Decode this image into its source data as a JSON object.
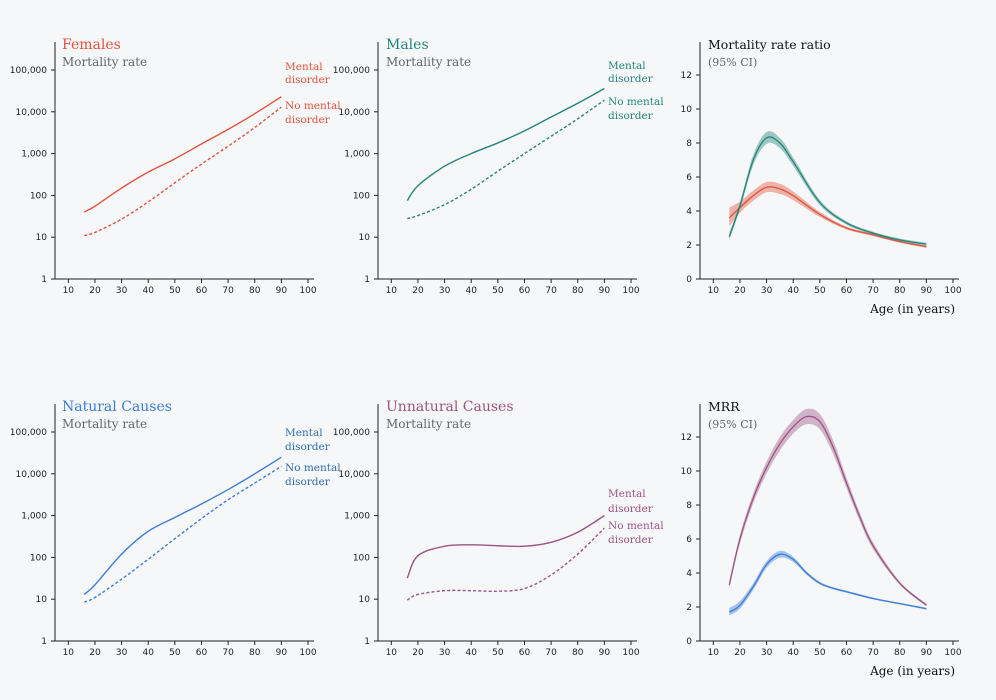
{
  "colors": {
    "females": "#e0533c",
    "males": "#24857a",
    "natural": "#3b7dd8",
    "unnatural": "#9b5583",
    "natural_label": "#2f6fae"
  },
  "chart_data": [
    {
      "type": "line",
      "title": "Females",
      "subtitle": "Mortality rate",
      "y_scale": "log",
      "ylim": [
        1,
        100000
      ],
      "y_ticks": [
        1,
        10,
        100,
        1000,
        10000,
        100000
      ],
      "y_tick_labels": [
        "1",
        "10",
        "100",
        "1,000",
        "10,000",
        "100,000"
      ],
      "xlim": [
        5,
        100
      ],
      "x_ticks": [
        10,
        20,
        30,
        40,
        50,
        60,
        70,
        80,
        90,
        100
      ],
      "x_tick_labels": [
        "10",
        "20",
        "30",
        "40",
        "50",
        "60",
        "70",
        "80",
        "90",
        "100"
      ],
      "series": [
        {
          "name": "Mental disorder",
          "dashed": false,
          "x": [
            16,
            20,
            30,
            40,
            50,
            60,
            70,
            80,
            90
          ],
          "y": [
            40,
            55,
            150,
            360,
            750,
            1700,
            3800,
            9000,
            23000
          ]
        },
        {
          "name": "No mental disorder",
          "dashed": true,
          "x": [
            16,
            20,
            30,
            40,
            50,
            60,
            70,
            80,
            90
          ],
          "y": [
            11,
            13,
            27,
            70,
            200,
            560,
            1500,
            4200,
            13000
          ]
        }
      ]
    },
    {
      "type": "line",
      "title": "Males",
      "subtitle": "Mortality rate",
      "y_scale": "log",
      "ylim": [
        1,
        100000
      ],
      "y_ticks": [
        1,
        10,
        100,
        1000,
        10000,
        100000
      ],
      "y_tick_labels": [
        "1",
        "10",
        "100",
        "1,000",
        "10,000",
        "100,000"
      ],
      "xlim": [
        5,
        100
      ],
      "x_ticks": [
        10,
        20,
        30,
        40,
        50,
        60,
        70,
        80,
        90,
        100
      ],
      "x_tick_labels": [
        "10",
        "20",
        "30",
        "40",
        "50",
        "60",
        "70",
        "80",
        "90",
        "100"
      ],
      "series": [
        {
          "name": "Mental disorder",
          "dashed": false,
          "x": [
            16,
            20,
            30,
            40,
            50,
            60,
            70,
            80,
            90
          ],
          "y": [
            75,
            170,
            500,
            1000,
            1800,
            3500,
            7500,
            16000,
            36000
          ]
        },
        {
          "name": "No mental disorder",
          "dashed": true,
          "x": [
            16,
            20,
            30,
            40,
            50,
            60,
            70,
            80,
            90
          ],
          "y": [
            28,
            33,
            60,
            140,
            380,
            1000,
            2600,
            6800,
            19000
          ]
        }
      ]
    },
    {
      "type": "area",
      "title": "Mortality rate ratio",
      "subtitle": "(95% CI)",
      "xlabel": "Age (in years)",
      "ylim": [
        0,
        13
      ],
      "y_ticks": [
        0,
        2,
        4,
        6,
        8,
        10,
        12
      ],
      "y_tick_labels": [
        "0",
        "2",
        "4",
        "6",
        "8",
        "10",
        "12"
      ],
      "xlim": [
        5,
        100
      ],
      "x_ticks": [
        10,
        20,
        30,
        40,
        50,
        60,
        70,
        80,
        90,
        100
      ],
      "x_tick_labels": [
        "10",
        "20",
        "30",
        "40",
        "50",
        "60",
        "70",
        "80",
        "90",
        "100"
      ],
      "series": [
        {
          "group": "females",
          "x": [
            16,
            20,
            25,
            30,
            35,
            40,
            50,
            60,
            70,
            80,
            90
          ],
          "y": [
            3.6,
            4.2,
            4.9,
            5.4,
            5.3,
            4.9,
            3.8,
            3.0,
            2.6,
            2.2,
            1.9
          ],
          "lo": [
            3.1,
            3.9,
            4.6,
            5.1,
            5.0,
            4.65,
            3.65,
            2.92,
            2.52,
            2.13,
            1.83
          ],
          "hi": [
            4.2,
            4.55,
            5.2,
            5.7,
            5.6,
            5.15,
            3.95,
            3.08,
            2.68,
            2.27,
            1.97
          ]
        },
        {
          "group": "males",
          "x": [
            16,
            20,
            25,
            30,
            35,
            40,
            50,
            60,
            70,
            80,
            90
          ],
          "y": [
            2.5,
            4.3,
            7.0,
            8.3,
            8.0,
            6.9,
            4.5,
            3.3,
            2.7,
            2.3,
            2.05
          ],
          "lo": [
            2.3,
            4.1,
            6.7,
            7.95,
            7.7,
            6.65,
            4.35,
            3.2,
            2.62,
            2.22,
            1.97
          ],
          "hi": [
            2.7,
            4.5,
            7.3,
            8.65,
            8.3,
            7.15,
            4.65,
            3.4,
            2.78,
            2.38,
            2.13
          ]
        }
      ]
    },
    {
      "type": "line",
      "title": "Natural Causes",
      "subtitle": "Mortality rate",
      "y_scale": "log",
      "ylim": [
        1,
        100000
      ],
      "y_ticks": [
        1,
        10,
        100,
        1000,
        10000,
        100000
      ],
      "y_tick_labels": [
        "1",
        "10",
        "100",
        "1,000",
        "10,000",
        "100,000"
      ],
      "xlim": [
        5,
        100
      ],
      "x_ticks": [
        10,
        20,
        30,
        40,
        50,
        60,
        70,
        80,
        90,
        100
      ],
      "x_tick_labels": [
        "10",
        "20",
        "30",
        "40",
        "50",
        "60",
        "70",
        "80",
        "90",
        "100"
      ],
      "series": [
        {
          "name": "Mental disorder",
          "dashed": false,
          "x": [
            16,
            20,
            30,
            40,
            50,
            60,
            70,
            80,
            90
          ],
          "y": [
            13,
            22,
            120,
            420,
            900,
            1900,
            4200,
            10000,
            25000
          ]
        },
        {
          "name": "No mental disorder",
          "dashed": true,
          "x": [
            16,
            20,
            30,
            40,
            50,
            60,
            70,
            80,
            90
          ],
          "y": [
            8.5,
            11,
            30,
            90,
            280,
            850,
            2400,
            6000,
            15000
          ]
        }
      ]
    },
    {
      "type": "line",
      "title": "Unnatural Causes",
      "subtitle": "Mortality rate",
      "y_scale": "log",
      "ylim": [
        1,
        100000
      ],
      "y_ticks": [
        1,
        10,
        100,
        1000,
        10000,
        100000
      ],
      "y_tick_labels": [
        "1",
        "10",
        "100",
        "1,000",
        "10,000",
        "100,000"
      ],
      "xlim": [
        5,
        100
      ],
      "x_ticks": [
        10,
        20,
        30,
        40,
        50,
        60,
        70,
        80,
        90,
        100
      ],
      "x_tick_labels": [
        "10",
        "20",
        "30",
        "40",
        "50",
        "60",
        "70",
        "80",
        "90",
        "100"
      ],
      "series": [
        {
          "name": "Mental disorder",
          "dashed": false,
          "x": [
            16,
            20,
            30,
            40,
            50,
            60,
            70,
            80,
            90
          ],
          "y": [
            32,
            110,
            185,
            200,
            190,
            185,
            230,
            400,
            1000
          ]
        },
        {
          "name": "No mental disorder",
          "dashed": true,
          "x": [
            16,
            20,
            30,
            40,
            50,
            60,
            70,
            80,
            90
          ],
          "y": [
            9.5,
            13,
            16,
            16,
            15.5,
            18,
            38,
            120,
            500
          ]
        }
      ]
    },
    {
      "type": "area",
      "title": "MRR",
      "subtitle": "(95% CI)",
      "xlabel": "Age (in years)",
      "ylim": [
        0,
        13
      ],
      "y_ticks": [
        0,
        2,
        4,
        6,
        8,
        10,
        12
      ],
      "y_tick_labels": [
        "0",
        "2",
        "4",
        "6",
        "8",
        "10",
        "12"
      ],
      "xlim": [
        5,
        100
      ],
      "x_ticks": [
        10,
        20,
        30,
        40,
        50,
        60,
        70,
        80,
        90,
        100
      ],
      "x_tick_labels": [
        "10",
        "20",
        "30",
        "40",
        "50",
        "60",
        "70",
        "80",
        "90",
        "100"
      ],
      "series": [
        {
          "group": "unnatural",
          "x": [
            16,
            20,
            25,
            30,
            35,
            40,
            45,
            50,
            55,
            60,
            65,
            70,
            80,
            90
          ],
          "y": [
            3.3,
            6.0,
            8.4,
            10.2,
            11.6,
            12.6,
            13.2,
            12.9,
            11.4,
            9.3,
            7.3,
            5.6,
            3.4,
            2.1
          ],
          "lo": [
            3.1,
            5.75,
            8.1,
            9.85,
            11.2,
            12.2,
            12.75,
            12.45,
            11.0,
            9.0,
            7.05,
            5.4,
            3.3,
            2.05
          ],
          "hi": [
            3.5,
            6.25,
            8.7,
            10.55,
            12.0,
            13.0,
            13.65,
            13.35,
            11.8,
            9.6,
            7.55,
            5.8,
            3.5,
            2.2
          ]
        },
        {
          "group": "natural",
          "x": [
            16,
            20,
            25,
            30,
            35,
            40,
            45,
            50,
            55,
            60,
            70,
            80,
            90
          ],
          "y": [
            1.7,
            2.1,
            3.2,
            4.5,
            5.1,
            4.8,
            4.0,
            3.4,
            3.1,
            2.9,
            2.5,
            2.2,
            1.9
          ],
          "lo": [
            1.5,
            1.9,
            3.0,
            4.3,
            4.9,
            4.65,
            3.9,
            3.32,
            3.04,
            2.84,
            2.45,
            2.15,
            1.85
          ],
          "hi": [
            1.95,
            2.35,
            3.4,
            4.7,
            5.3,
            4.95,
            4.1,
            3.48,
            3.16,
            2.96,
            2.55,
            2.25,
            1.95
          ]
        }
      ]
    }
  ],
  "line_labels": [
    {
      "line1": "Mental",
      "line2": "disorder"
    },
    {
      "line1": "No mental",
      "line2": "disorder"
    }
  ]
}
